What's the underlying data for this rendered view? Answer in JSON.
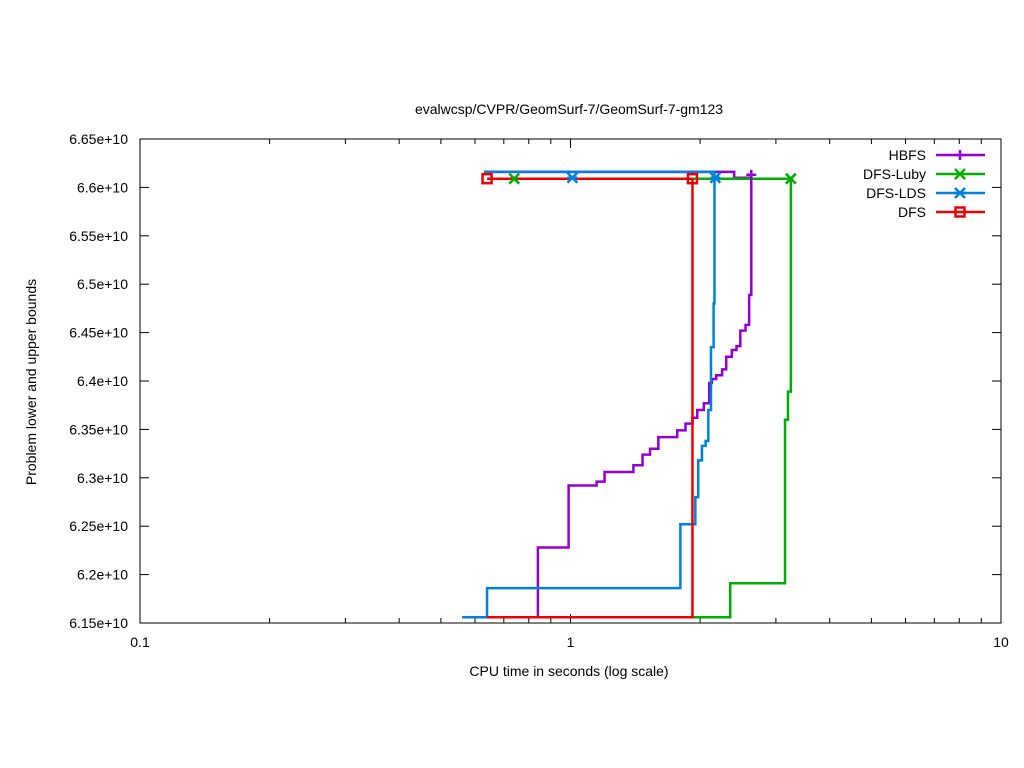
{
  "chart_data": {
    "type": "line",
    "title": "evalwcsp/CVPR/GeomSurf-7/GeomSurf-7-gm123",
    "xlabel": "CPU time in seconds (log scale)",
    "ylabel": "Problem lower and upper bounds",
    "xscale": "log",
    "xlim": [
      0.1,
      10
    ],
    "ylim": [
      61500000000,
      66500000000
    ],
    "grid": false,
    "legend_position": "top-right",
    "x_ticks": [
      {
        "value": 0.1,
        "label": "0.1"
      },
      {
        "value": 1,
        "label": "1"
      },
      {
        "value": 10,
        "label": "10"
      }
    ],
    "y_ticks": [
      {
        "value": 61500000000,
        "label": "6.15e+10"
      },
      {
        "value": 62000000000,
        "label": "6.2e+10"
      },
      {
        "value": 62500000000,
        "label": "6.25e+10"
      },
      {
        "value": 63000000000,
        "label": "6.3e+10"
      },
      {
        "value": 63500000000,
        "label": "6.35e+10"
      },
      {
        "value": 64000000000,
        "label": "6.4e+10"
      },
      {
        "value": 64500000000,
        "label": "6.45e+10"
      },
      {
        "value": 65000000000,
        "label": "6.5e+10"
      },
      {
        "value": 65500000000,
        "label": "6.55e+10"
      },
      {
        "value": 66000000000,
        "label": "6.6e+10"
      },
      {
        "value": 66500000000,
        "label": "6.65e+10"
      }
    ],
    "series": [
      {
        "name": "HBFS",
        "color": "#9400d3",
        "marker": "plus",
        "lower": [
          [
            0.84,
            61560000000
          ],
          [
            0.84,
            62280000000
          ],
          [
            0.99,
            62280000000
          ],
          [
            0.99,
            62920000000
          ],
          [
            1.15,
            62920000000
          ],
          [
            1.15,
            62960000000
          ],
          [
            1.2,
            62960000000
          ],
          [
            1.2,
            63060000000
          ],
          [
            1.4,
            63060000000
          ],
          [
            1.4,
            63130000000
          ],
          [
            1.47,
            63130000000
          ],
          [
            1.47,
            63240000000
          ],
          [
            1.53,
            63240000000
          ],
          [
            1.53,
            63300000000
          ],
          [
            1.6,
            63300000000
          ],
          [
            1.6,
            63420000000
          ],
          [
            1.77,
            63420000000
          ],
          [
            1.77,
            63490000000
          ],
          [
            1.85,
            63490000000
          ],
          [
            1.85,
            63560000000
          ],
          [
            1.92,
            63560000000
          ],
          [
            1.92,
            63620000000
          ],
          [
            1.97,
            63620000000
          ],
          [
            1.97,
            63700000000
          ],
          [
            2.04,
            63700000000
          ],
          [
            2.04,
            63770000000
          ],
          [
            2.1,
            63770000000
          ],
          [
            2.1,
            63980000000
          ],
          [
            2.13,
            63980000000
          ],
          [
            2.13,
            64020000000
          ],
          [
            2.18,
            64020000000
          ],
          [
            2.18,
            64060000000
          ],
          [
            2.25,
            64060000000
          ],
          [
            2.25,
            64120000000
          ],
          [
            2.3,
            64120000000
          ],
          [
            2.3,
            64250000000
          ],
          [
            2.37,
            64250000000
          ],
          [
            2.37,
            64320000000
          ],
          [
            2.43,
            64320000000
          ],
          [
            2.43,
            64360000000
          ],
          [
            2.48,
            64360000000
          ],
          [
            2.48,
            64520000000
          ],
          [
            2.55,
            64520000000
          ],
          [
            2.55,
            64580000000
          ],
          [
            2.6,
            64580000000
          ],
          [
            2.6,
            64890000000
          ],
          [
            2.63,
            64890000000
          ],
          [
            2.63,
            66130000000
          ]
        ],
        "upper": [
          [
            0.63,
            66160000000
          ],
          [
            2.4,
            66160000000
          ],
          [
            2.4,
            66100000000
          ],
          [
            2.63,
            66100000000
          ]
        ]
      },
      {
        "name": "DFS-Luby",
        "color": "#00b000",
        "marker": "x",
        "lower": [
          [
            1.9,
            61560000000
          ],
          [
            2.35,
            61560000000
          ],
          [
            2.35,
            61910000000
          ],
          [
            3.15,
            61910000000
          ],
          [
            3.15,
            63600000000
          ],
          [
            3.2,
            63600000000
          ],
          [
            3.2,
            63890000000
          ],
          [
            3.25,
            63890000000
          ],
          [
            3.25,
            66090000000
          ]
        ],
        "upper": [
          [
            0.74,
            66090000000
          ],
          [
            3.25,
            66090000000
          ]
        ]
      },
      {
        "name": "DFS-LDS",
        "color": "#0080e0",
        "marker": "asterisk",
        "lower": [
          [
            0.56,
            61560000000
          ],
          [
            0.64,
            61560000000
          ],
          [
            0.64,
            61860000000
          ],
          [
            1.8,
            61860000000
          ],
          [
            1.8,
            62520000000
          ],
          [
            1.95,
            62520000000
          ],
          [
            1.95,
            62800000000
          ],
          [
            1.98,
            62800000000
          ],
          [
            1.98,
            63180000000
          ],
          [
            2.02,
            63180000000
          ],
          [
            2.02,
            63330000000
          ],
          [
            2.06,
            63330000000
          ],
          [
            2.06,
            63380000000
          ],
          [
            2.09,
            63380000000
          ],
          [
            2.09,
            63700000000
          ],
          [
            2.12,
            63700000000
          ],
          [
            2.12,
            64350000000
          ],
          [
            2.15,
            64350000000
          ],
          [
            2.15,
            64800000000
          ],
          [
            2.16,
            64800000000
          ],
          [
            2.16,
            66090000000
          ]
        ],
        "upper": [
          [
            0.63,
            66160000000
          ],
          [
            2.16,
            66160000000
          ],
          [
            2.16,
            66100000000
          ],
          [
            2.2,
            66100000000
          ]
        ]
      },
      {
        "name": "DFS",
        "color": "#ee0000",
        "marker": "square",
        "lower": [
          [
            0.64,
            61560000000
          ],
          [
            1.92,
            61560000000
          ],
          [
            1.92,
            66090000000
          ]
        ],
        "upper": [
          [
            0.64,
            66090000000
          ],
          [
            1.92,
            66090000000
          ]
        ]
      }
    ],
    "markers": [
      {
        "series": "HBFS",
        "points": [
          [
            2.63,
            66130000000
          ]
        ]
      },
      {
        "series": "DFS-Luby",
        "points": [
          [
            0.74,
            66090000000
          ],
          [
            3.25,
            66090000000
          ]
        ]
      },
      {
        "series": "DFS-LDS",
        "points": [
          [
            1.01,
            66100000000
          ],
          [
            2.17,
            66100000000
          ]
        ]
      },
      {
        "series": "DFS",
        "points": [
          [
            0.64,
            66090000000
          ],
          [
            1.92,
            66090000000
          ]
        ]
      }
    ]
  }
}
